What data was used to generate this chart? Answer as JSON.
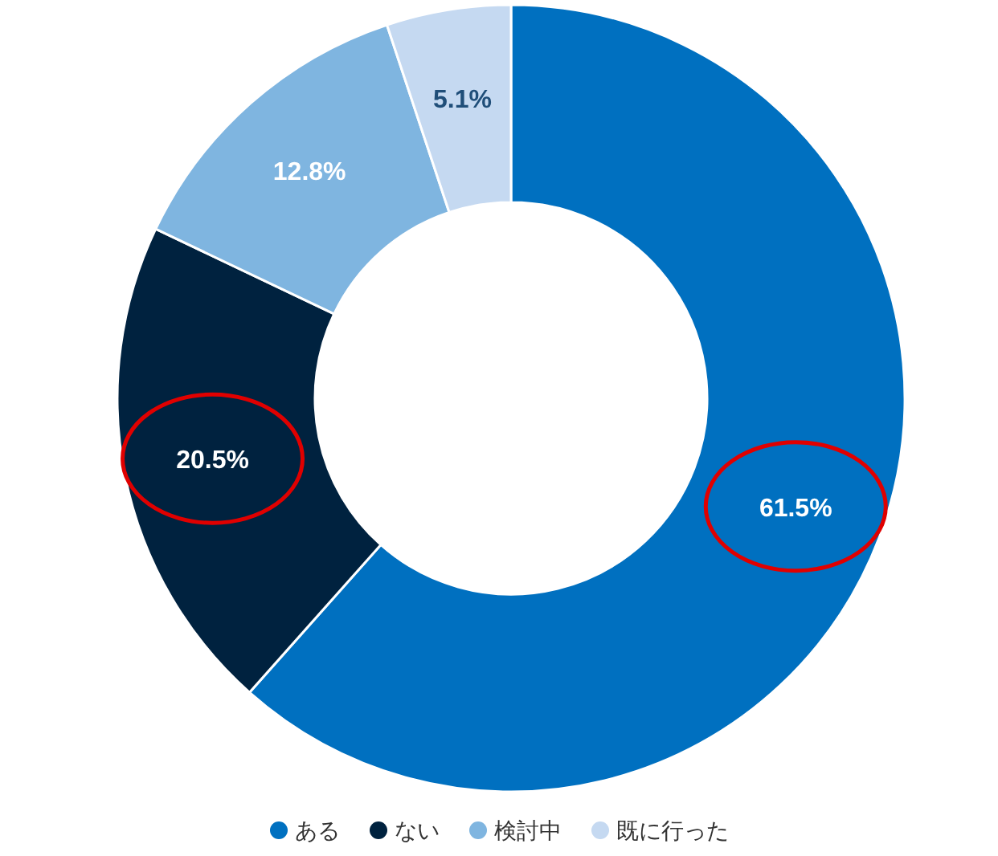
{
  "chart_data": {
    "type": "donut",
    "categories": [
      "ある",
      "ない",
      "検討中",
      "既に行った"
    ],
    "values": [
      61.5,
      20.5,
      12.8,
      5.1
    ],
    "colors": [
      "#0070c0",
      "#00223f",
      "#7fb5e0",
      "#c5d9f1"
    ],
    "value_labels": [
      "61.5%",
      "20.5%",
      "12.8%",
      "5.1%"
    ],
    "legend": "bottom"
  }
}
